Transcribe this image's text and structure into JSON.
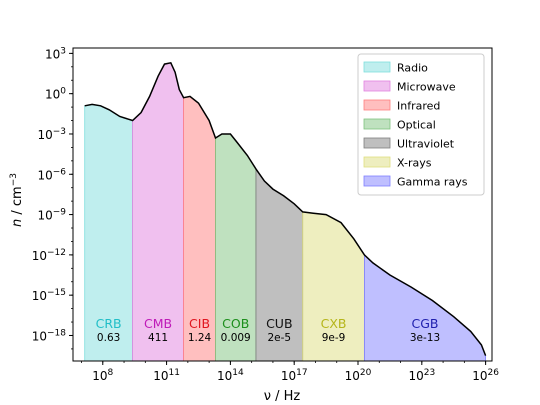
{
  "chart_data": {
    "type": "area",
    "title": "",
    "xlabel": "ν / Hz",
    "ylabel_main": "n",
    "ylabel_unit": " / cm",
    "ylabel_exp": "−3",
    "x_log10_range": [
      6.6,
      26.3
    ],
    "y_log10_range": [
      -19.9,
      3.4
    ],
    "x_ticks": [
      {
        "exp": 8,
        "label_base": "10",
        "label_exp": "8"
      },
      {
        "exp": 11,
        "label_base": "10",
        "label_exp": "11"
      },
      {
        "exp": 14,
        "label_base": "10",
        "label_exp": "14"
      },
      {
        "exp": 17,
        "label_base": "10",
        "label_exp": "17"
      },
      {
        "exp": 20,
        "label_base": "10",
        "label_exp": "20"
      },
      {
        "exp": 23,
        "label_base": "10",
        "label_exp": "23"
      },
      {
        "exp": 26,
        "label_base": "10",
        "label_exp": "26"
      }
    ],
    "y_ticks": [
      {
        "exp": 3,
        "label_base": "10",
        "label_exp": "3"
      },
      {
        "exp": 0,
        "label_base": "10",
        "label_exp": "0"
      },
      {
        "exp": -3,
        "label_base": "10",
        "label_exp": "−3"
      },
      {
        "exp": -6,
        "label_base": "10",
        "label_exp": "−6"
      },
      {
        "exp": -9,
        "label_base": "10",
        "label_exp": "−9"
      },
      {
        "exp": -12,
        "label_base": "10",
        "label_exp": "−12"
      },
      {
        "exp": -15,
        "label_base": "10",
        "label_exp": "−15"
      },
      {
        "exp": -18,
        "label_base": "10",
        "label_exp": "−18"
      }
    ],
    "legend_position": "top-right",
    "curve_log10": [
      [
        7.15,
        -0.9
      ],
      [
        7.5,
        -0.8
      ],
      [
        7.9,
        -0.9
      ],
      [
        8.3,
        -1.2
      ],
      [
        8.8,
        -1.7
      ],
      [
        9.4,
        -2.0
      ],
      [
        9.8,
        -1.4
      ],
      [
        10.2,
        -0.2
      ],
      [
        10.6,
        1.3
      ],
      [
        10.9,
        2.2
      ],
      [
        11.2,
        2.3
      ],
      [
        11.4,
        1.6
      ],
      [
        11.6,
        0.3
      ],
      [
        11.8,
        -0.3
      ],
      [
        12.1,
        -0.2
      ],
      [
        12.5,
        -0.7
      ],
      [
        13.0,
        -2.0
      ],
      [
        13.3,
        -3.3
      ],
      [
        13.6,
        -3.0
      ],
      [
        14.0,
        -3.0
      ],
      [
        14.3,
        -3.6
      ],
      [
        14.8,
        -4.6
      ],
      [
        15.2,
        -5.6
      ],
      [
        15.6,
        -6.5
      ],
      [
        16.0,
        -7.1
      ],
      [
        16.5,
        -7.6
      ],
      [
        17.0,
        -8.2
      ],
      [
        17.4,
        -8.8
      ],
      [
        17.9,
        -8.9
      ],
      [
        18.5,
        -9.0
      ],
      [
        19.2,
        -9.6
      ],
      [
        19.8,
        -10.8
      ],
      [
        20.3,
        -12.0
      ],
      [
        20.7,
        -12.6
      ],
      [
        21.5,
        -13.5
      ],
      [
        22.5,
        -14.4
      ],
      [
        23.5,
        -15.4
      ],
      [
        24.5,
        -16.6
      ],
      [
        25.3,
        -17.7
      ],
      [
        25.8,
        -18.7
      ],
      [
        26.0,
        -19.5
      ]
    ],
    "series": [
      {
        "name": "Radio",
        "abbr": "CRB",
        "value": "0.63",
        "color": "#7fdedd",
        "label_color": "#21bec7",
        "x_from": 7.15,
        "x_to": 9.4
      },
      {
        "name": "Microwave",
        "abbr": "CMB",
        "value": "411",
        "color": "#e282e0",
        "label_color": "#bf1ab8",
        "x_from": 9.4,
        "x_to": 11.8
      },
      {
        "name": "Infrared",
        "abbr": "CIB",
        "value": "1.24",
        "color": "#ff7f7f",
        "label_color": "#e0151f",
        "x_from": 11.8,
        "x_to": 13.3
      },
      {
        "name": "Optical",
        "abbr": "COB",
        "value": "0.009",
        "color": "#7fc47f",
        "label_color": "#1d8f1d",
        "x_from": 13.3,
        "x_to": 15.2
      },
      {
        "name": "Ultraviolet",
        "abbr": "CUB",
        "value": "2e-5",
        "color": "#7f7f7f",
        "label_color": "#111111",
        "x_from": 15.2,
        "x_to": 17.4
      },
      {
        "name": "X-rays",
        "abbr": "CXB",
        "value": "9e-9",
        "color": "#dede7f",
        "label_color": "#b5b51a",
        "x_from": 17.4,
        "x_to": 20.3
      },
      {
        "name": "Gamma rays",
        "abbr": "CGB",
        "value": "3e-13",
        "color": "#7f7fff",
        "label_color": "#1f1fae",
        "x_from": 20.3,
        "x_to": 26.0
      }
    ]
  }
}
